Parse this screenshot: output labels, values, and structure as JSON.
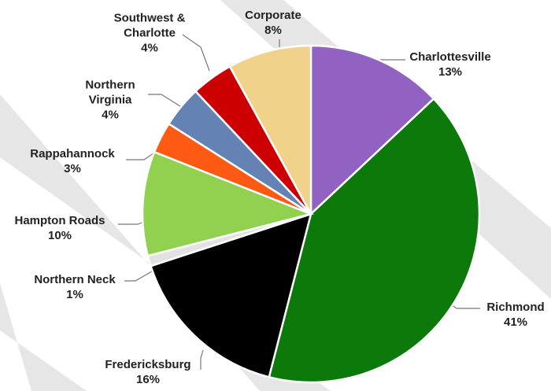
{
  "chart_data": {
    "type": "pie",
    "categories": [
      "Charlottesville",
      "Richmond",
      "Fredericksburg",
      "Northern Neck",
      "Hampton Roads",
      "Rappahannock",
      "Northern Virginia",
      "Southwest & Charlotte",
      "Corporate"
    ],
    "values": [
      13,
      41,
      16,
      1,
      10,
      3,
      4,
      4,
      8
    ],
    "value_labels": [
      "13%",
      "41%",
      "16%",
      "1%",
      "10%",
      "3%",
      "4%",
      "4%",
      "8%"
    ],
    "colors": [
      "#9262c2",
      "#0b7a0b",
      "#000000",
      "#e2e2e2",
      "#92d050",
      "#ff5a14",
      "#6582b4",
      "#cc0000",
      "#f0d28a"
    ]
  }
}
